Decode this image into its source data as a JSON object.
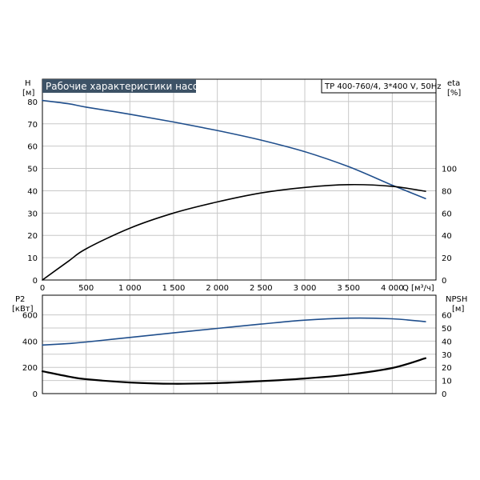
{
  "chart_data": {
    "type": "line",
    "title": "Рабочие характеристики насоса",
    "model": "TP 400-760/4, 3*400 V, 50Hz",
    "colors": {
      "blue": "#1f4e8c",
      "black": "#000000",
      "grid": "#c8c8c8",
      "title_bg": "#3d5266"
    },
    "upper": {
      "xlabel": "Q [м³/ч]",
      "x_ticks": [
        0,
        500,
        1000,
        1500,
        2000,
        2500,
        3000,
        3500,
        4000
      ],
      "x_tick_labels": [
        "0",
        "500",
        "1 000",
        "1 500",
        "2 000",
        "2 500",
        "3 000",
        "3 500",
        "4 000"
      ],
      "xlim": [
        0,
        4500
      ],
      "left_axis": {
        "label_top": "H",
        "label_unit": "[м]",
        "ylim": [
          0,
          90
        ],
        "ticks": [
          0,
          10,
          20,
          30,
          40,
          50,
          60,
          70,
          80
        ]
      },
      "right_axis": {
        "label_top": "eta",
        "label_unit": "[%]",
        "ylim": [
          0,
          180
        ],
        "ticks": [
          0,
          20,
          40,
          60,
          80,
          100
        ]
      },
      "series": [
        {
          "id": "H",
          "color": "#1f4e8c",
          "axis": "left",
          "x": [
            0,
            300,
            500,
            1000,
            1500,
            2000,
            2500,
            3000,
            3500,
            4000,
            4380
          ],
          "y": [
            80.5,
            79,
            77.5,
            74.3,
            70.8,
            67,
            62.7,
            57.5,
            50.8,
            42.5,
            36.5
          ]
        },
        {
          "id": "eta",
          "color": "#000000",
          "axis": "right",
          "x": [
            0,
            300,
            500,
            1000,
            1500,
            2000,
            2500,
            3000,
            3500,
            4000,
            4380
          ],
          "y": [
            0,
            17,
            28,
            46.5,
            60,
            70,
            78,
            83,
            85.5,
            84,
            79.5
          ]
        }
      ]
    },
    "lower": {
      "left_axis": {
        "label_top": "P2",
        "label_unit": "[кВт]",
        "ylim": [
          0,
          750
        ],
        "ticks": [
          0,
          200,
          400,
          600
        ]
      },
      "right_axis": {
        "label_top": "NPSH",
        "label_unit": "[м]",
        "ylim": [
          0,
          75
        ],
        "ticks": [
          0,
          10,
          20,
          30,
          40,
          50,
          60
        ]
      },
      "series": [
        {
          "id": "P2",
          "color": "#1f4e8c",
          "axis": "left",
          "x": [
            0,
            300,
            500,
            1000,
            1500,
            2000,
            2500,
            3000,
            3500,
            4000,
            4380
          ],
          "y": [
            370,
            382,
            393,
            428,
            463,
            497,
            530,
            560,
            575,
            570,
            548
          ]
        },
        {
          "id": "NPSH",
          "color": "#000000",
          "axis": "right",
          "x": [
            0,
            300,
            500,
            1000,
            1500,
            2000,
            2500,
            3000,
            3500,
            4000,
            4380
          ],
          "y": [
            17,
            13,
            11,
            8.5,
            7.5,
            8,
            9.5,
            11.5,
            14.5,
            19.5,
            27
          ]
        }
      ]
    }
  }
}
